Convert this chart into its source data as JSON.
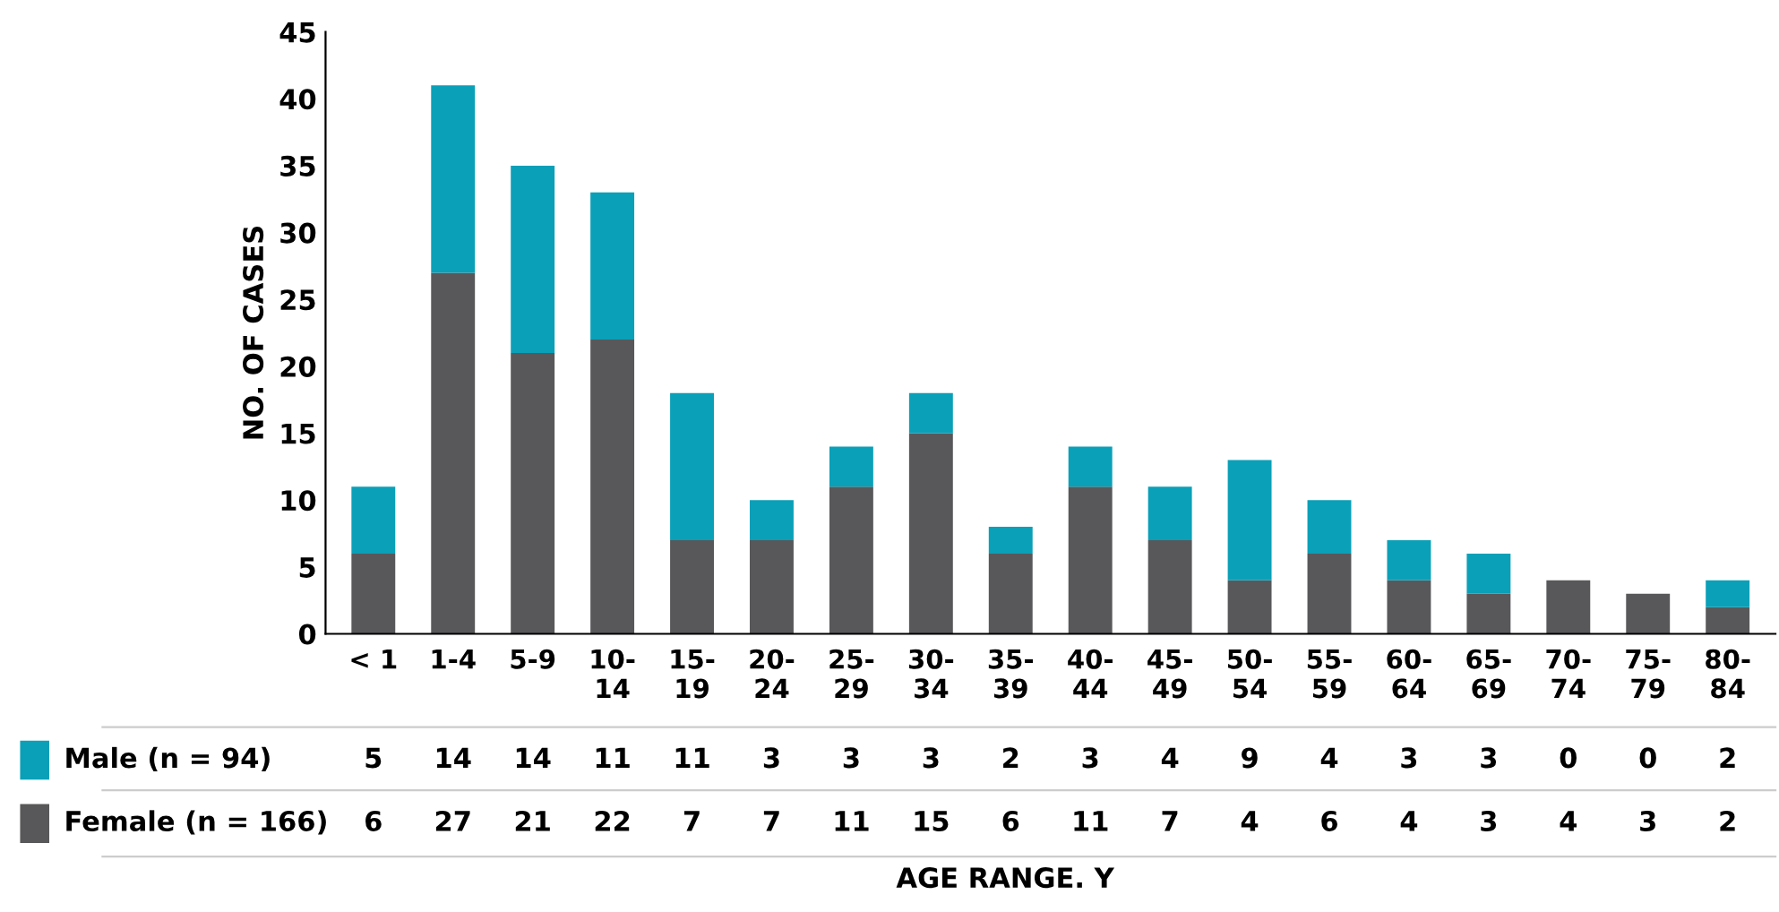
{
  "chart_data": {
    "type": "bar",
    "stacked": true,
    "annotations": [
      "AGE RANGE. Y"
    ],
    "ylabel": "NO. OF CASES",
    "categories": [
      "< 1",
      "1-4",
      "5-9",
      "10-\n14",
      "15-\n19",
      "20-\n24",
      "25-\n29",
      "30-\n34",
      "35-\n39",
      "40-\n44",
      "45-\n49",
      "50-\n54",
      "55-\n59",
      "60-\n64",
      "65-\n69",
      "70-\n74",
      "75-\n79",
      "80-\n84"
    ],
    "series": [
      {
        "name": "Female (n = 166)",
        "color": "#58585a",
        "values": [
          6,
          27,
          21,
          22,
          7,
          7,
          11,
          15,
          6,
          11,
          7,
          4,
          6,
          4,
          3,
          4,
          3,
          2
        ]
      },
      {
        "name": "Male (n = 94)",
        "color": "#0aa0b8",
        "values": [
          5,
          14,
          14,
          11,
          11,
          3,
          3,
          3,
          2,
          3,
          4,
          9,
          4,
          3,
          3,
          0,
          0,
          2
        ]
      }
    ],
    "ylim": [
      0,
      45
    ],
    "yticks": [
      0,
      5,
      10,
      15,
      20,
      25,
      30,
      35,
      40,
      45
    ],
    "grid": false,
    "legend": "bottom",
    "data_labels": true
  }
}
